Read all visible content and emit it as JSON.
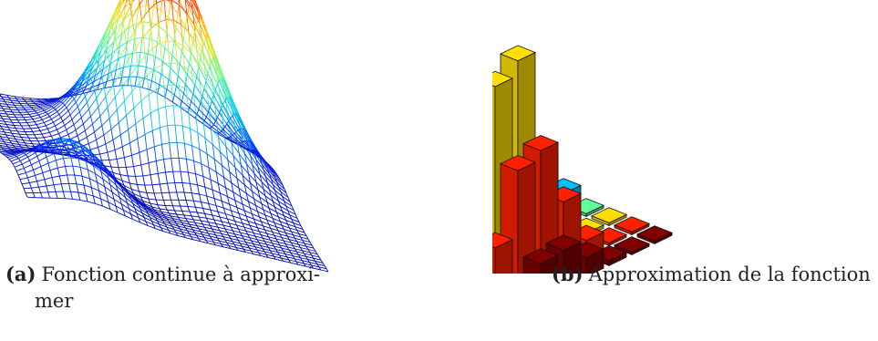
{
  "figure": {
    "subfigure_a": {
      "label": "(a)",
      "caption_line1": "Fonction continue à approxi-",
      "caption_line2": "mer"
    },
    "subfigure_b": {
      "label": "(b)",
      "caption": "Approximation de la fonction"
    }
  },
  "colors": {
    "colormap": [
      "#00008f",
      "#0020ff",
      "#00c0ff",
      "#60ff9f",
      "#ffdf00",
      "#ff2000",
      "#800000"
    ]
  }
}
